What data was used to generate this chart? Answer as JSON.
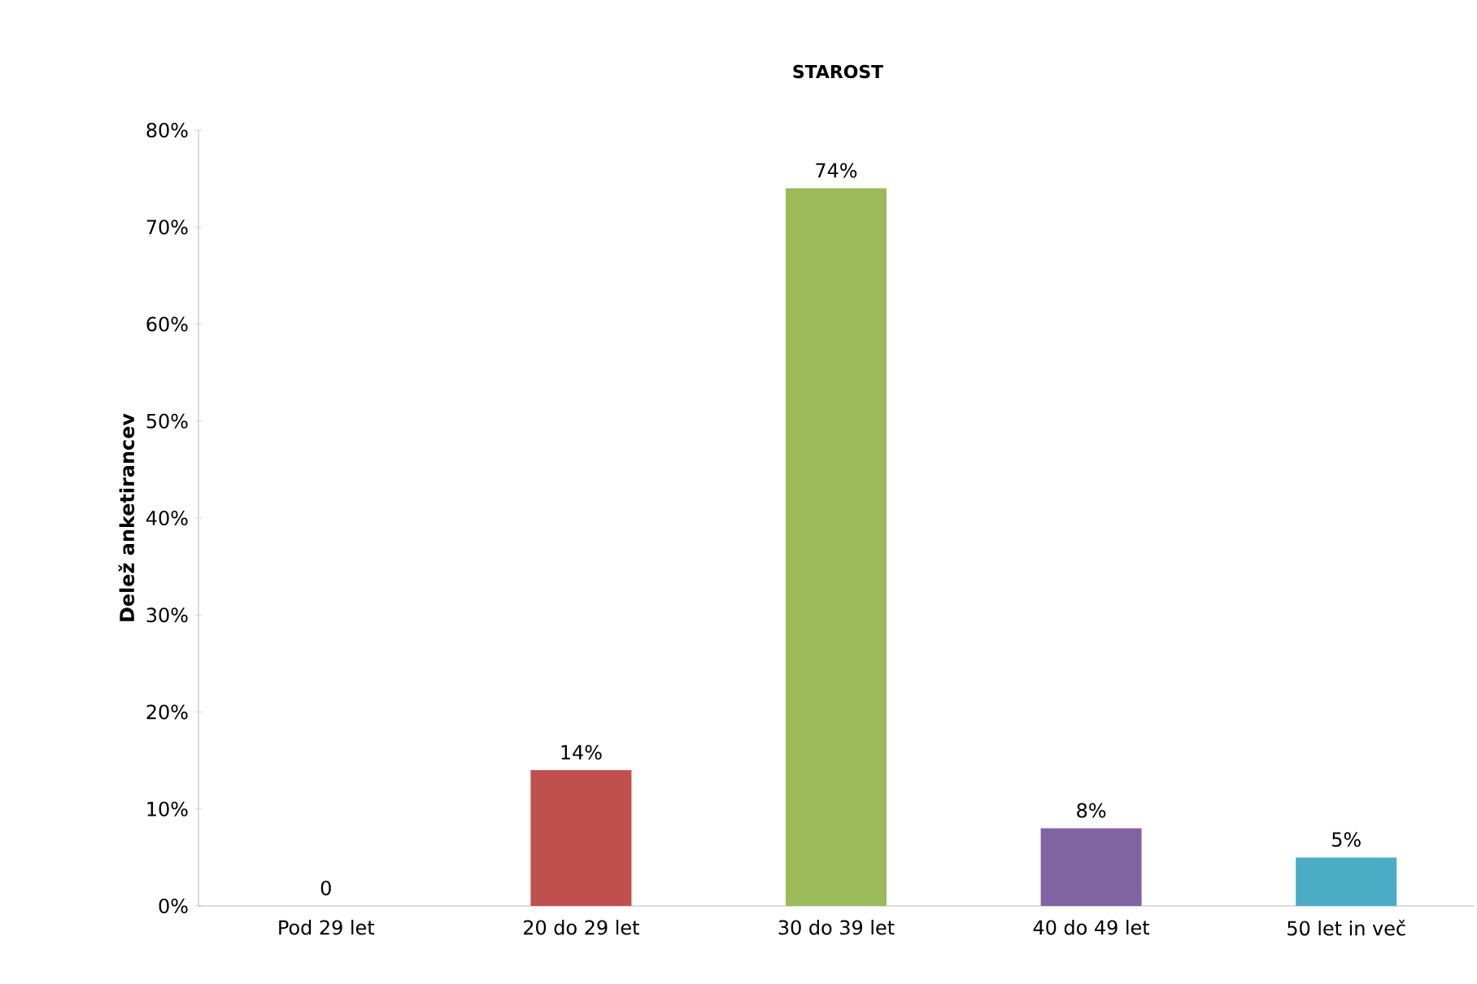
{
  "chart_data": {
    "type": "bar",
    "title": "STAROST",
    "ylabel": "Delež anketirancev",
    "categories": [
      "Pod 29 let",
      "20 do 29 let",
      "30 do 39 let",
      "40 do 49 let",
      "50 let in več"
    ],
    "values": [
      0,
      14,
      74,
      8,
      5
    ],
    "colors": [
      "#4f81bd",
      "#c0504d",
      "#9bbb59",
      "#8064a2",
      "#4bacc6"
    ],
    "value_labels": [
      "0",
      "14%",
      "74%",
      "8%",
      "5%"
    ],
    "ylim": [
      0,
      80
    ],
    "yticks": [
      {
        "value": 0,
        "label": "0%"
      },
      {
        "value": 10,
        "label": "10%"
      },
      {
        "value": 20,
        "label": "20%"
      },
      {
        "value": 30,
        "label": "30%"
      },
      {
        "value": 40,
        "label": "40%"
      },
      {
        "value": 50,
        "label": "50%"
      },
      {
        "value": 60,
        "label": "60%"
      },
      {
        "value": 70,
        "label": "70%"
      },
      {
        "value": 80,
        "label": "80%"
      }
    ],
    "grid": false
  }
}
